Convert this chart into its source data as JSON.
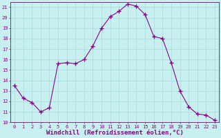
{
  "x": [
    0,
    1,
    2,
    3,
    4,
    5,
    6,
    7,
    8,
    9,
    10,
    11,
    12,
    13,
    14,
    15,
    16,
    17,
    18,
    19,
    20,
    21,
    22,
    23
  ],
  "y": [
    13.5,
    12.3,
    11.9,
    11.0,
    11.4,
    15.6,
    15.7,
    15.6,
    16.0,
    17.3,
    19.0,
    20.1,
    20.6,
    21.3,
    21.1,
    20.3,
    18.2,
    18.0,
    15.7,
    13.0,
    11.5,
    10.8,
    10.7,
    10.2
  ],
  "line_color": "#880088",
  "marker": "+",
  "marker_size": 4,
  "marker_lw": 1.0,
  "bg_color": "#c8f0f0",
  "grid_color": "#aadddd",
  "xlabel": "Windchill (Refroidissement éolien,°C)",
  "xlim_min": -0.5,
  "xlim_max": 23.5,
  "ylim_min": 10,
  "ylim_max": 21.5,
  "yticks": [
    10,
    11,
    12,
    13,
    14,
    15,
    16,
    17,
    18,
    19,
    20,
    21
  ],
  "xticks": [
    0,
    1,
    2,
    3,
    4,
    5,
    6,
    7,
    8,
    9,
    10,
    11,
    12,
    13,
    14,
    15,
    16,
    17,
    18,
    19,
    20,
    21,
    22,
    23
  ],
  "tick_color": "#880088",
  "label_color": "#880088",
  "tick_fontsize": 5,
  "xlabel_fontsize": 6.5
}
